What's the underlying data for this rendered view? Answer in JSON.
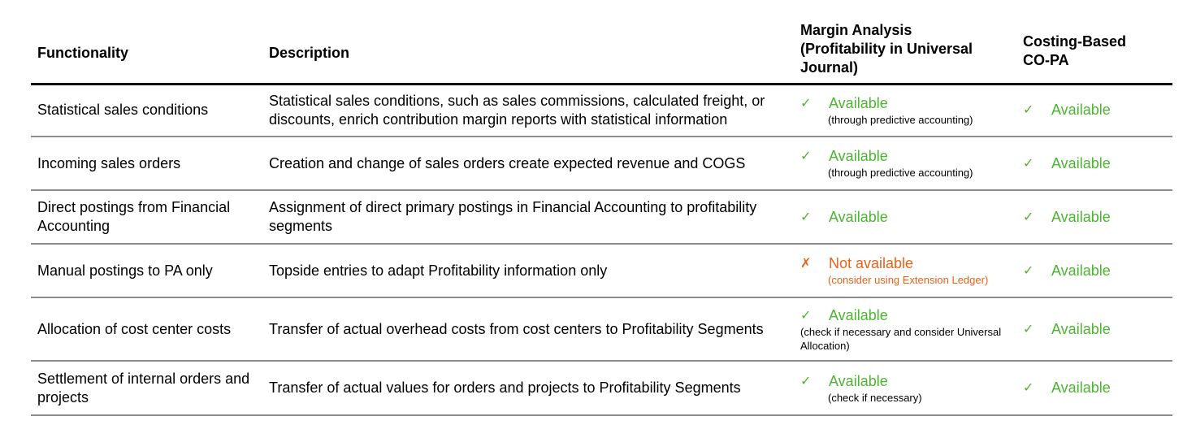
{
  "headers": {
    "functionality": "Functionality",
    "description": "Description",
    "margin_analysis": "Margin Analysis (Profitability in Universal Journal)",
    "costing_based": "Costing-Based CO-PA"
  },
  "colors": {
    "available": "#4bb530",
    "not_available": "#e8611a"
  },
  "rows": [
    {
      "functionality": "Statistical sales conditions",
      "description": "Statistical sales conditions, such as sales commissions, calculated freight, or discounts, enrich contribution margin reports with statistical information",
      "ma_icon": "✓",
      "ma_status": "Available",
      "ma_note": "(through predictive accounting)",
      "cb_icon": "✓",
      "cb_status": "Available"
    },
    {
      "functionality": "Incoming sales orders",
      "description": "Creation and change of sales orders create expected revenue and COGS",
      "ma_icon": "✓",
      "ma_status": "Available",
      "ma_note": "(through predictive accounting)",
      "cb_icon": "✓",
      "cb_status": "Available"
    },
    {
      "functionality": "Direct postings from Financial Accounting",
      "description": "Assignment of direct primary postings in Financial Accounting to profitability segments",
      "ma_icon": "✓",
      "ma_status": "Available",
      "cb_icon": "✓",
      "cb_status": "Available"
    },
    {
      "functionality": "Manual postings to PA only",
      "description": "Topside entries to adapt Profitability information only",
      "ma_icon": "✗",
      "ma_status": "Not available",
      "ma_note": "(consider using Extension Ledger)",
      "cb_icon": "✓",
      "cb_status": "Available"
    },
    {
      "functionality": "Allocation of cost center costs",
      "description": "Transfer of actual overhead costs from cost centers to Profitability Segments",
      "ma_icon": "✓",
      "ma_status": "Available",
      "ma_note": "(check if necessary and consider Universal Allocation)",
      "cb_icon": "✓",
      "cb_status": "Available"
    },
    {
      "functionality": "Settlement of internal orders and projects",
      "description": "Transfer of actual values for orders and projects to Profitability Segments",
      "ma_icon": "✓",
      "ma_status": "Available",
      "ma_note": "(check if necessary)",
      "cb_icon": "✓",
      "cb_status": "Available"
    }
  ]
}
